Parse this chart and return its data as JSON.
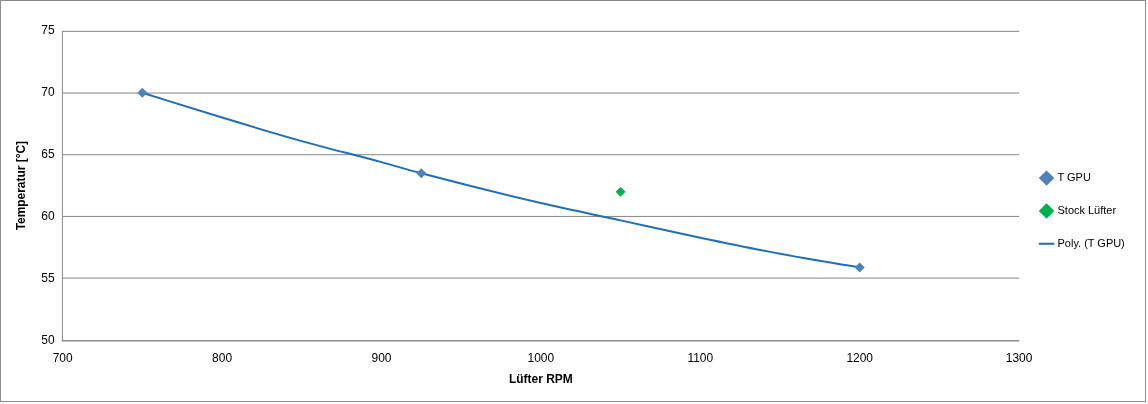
{
  "chart_data": {
    "type": "scatter",
    "xlabel": "Lüfter RPM",
    "ylabel": "Temperatur [°C]",
    "xlim": [
      700,
      1300
    ],
    "xticks": [
      700,
      800,
      900,
      1000,
      1100,
      1200,
      1300
    ],
    "ylim": [
      50,
      75
    ],
    "yticks": [
      50,
      55,
      60,
      65,
      70,
      75
    ],
    "grid": "y",
    "legend": "right",
    "marker": "diamond",
    "series": [
      {
        "name": "T GPU",
        "color": "#4f81bd",
        "x": [
          750,
          925,
          1200
        ],
        "values": [
          70,
          63.5,
          55.9
        ]
      },
      {
        "name": "Stock Lüfter",
        "color": "#00b050",
        "x": [
          1050
        ],
        "values": [
          62
        ]
      },
      {
        "name": "Poly. (T GPU)",
        "type": "line",
        "marker": "none",
        "color": "#1f6fc0",
        "x": [
          750,
          800,
          850,
          900,
          925,
          1000,
          1050,
          1100,
          1150,
          1200
        ],
        "values": [
          70,
          68,
          66.1,
          64.4,
          63.5,
          61.1,
          59.7,
          58.3,
          57,
          55.9
        ]
      }
    ]
  }
}
